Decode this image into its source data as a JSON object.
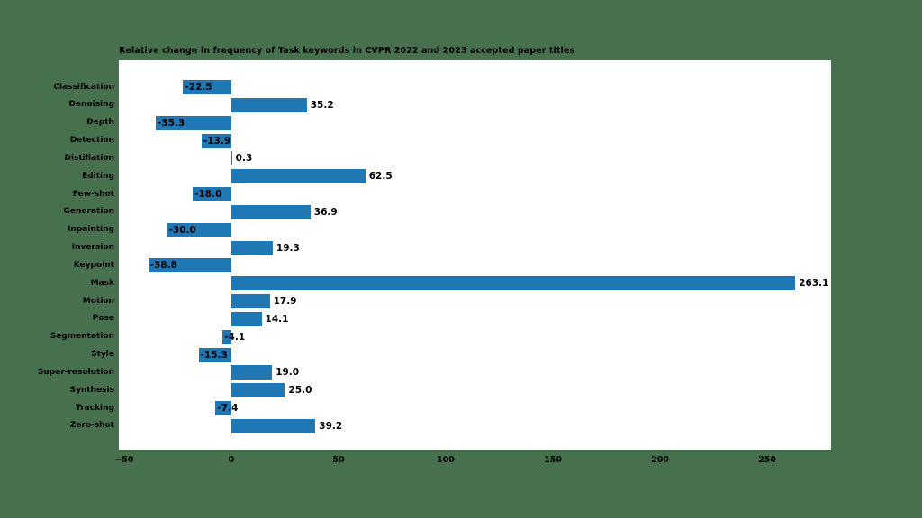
{
  "page": {
    "background_color": "#47704F",
    "plot_background_color": "#ffffff",
    "text_color": "#000000"
  },
  "chart_data": {
    "type": "bar",
    "orientation": "horizontal",
    "title": "Relative change in frequency of Task keywords in CVPR 2022 and 2023 accepted paper titles",
    "categories": [
      "Classification",
      "Denoising",
      "Depth",
      "Detection",
      "Distillation",
      "Editing",
      "Few-shot",
      "Generation",
      "Inpainting",
      "Inversion",
      "Keypoint",
      "Mask",
      "Motion",
      "Pose",
      "Segmentation",
      "Style",
      "Super-resolution",
      "Synthesis",
      "Tracking",
      "Zero-shot"
    ],
    "values": [
      -22.5,
      35.2,
      -35.3,
      -13.9,
      0.3,
      62.5,
      -18.0,
      36.9,
      -30.0,
      19.3,
      -38.8,
      263.1,
      17.9,
      14.1,
      -4.1,
      -15.3,
      19.0,
      25.0,
      -7.4,
      39.2
    ],
    "value_labels": [
      "-22.5",
      "35.2",
      "-35.3",
      "-13.9",
      "0.3",
      "62.5",
      "-18.0",
      "36.9",
      "-30.0",
      "19.3",
      "-38.8",
      "263.1",
      "17.9",
      "14.1",
      "-4.1",
      "-15.3",
      "19.0",
      "25.0",
      "-7.4",
      "39.2"
    ],
    "bar_color": "#1f77b4",
    "xlabel": "",
    "ylabel": "",
    "xlim": [
      -52.5,
      279.8
    ],
    "x_ticks": [
      -50,
      0,
      50,
      100,
      150,
      200,
      250
    ],
    "x_tick_labels": [
      "−50",
      "0",
      "50",
      "100",
      "150",
      "200",
      "250"
    ],
    "grid": false,
    "legend": "none"
  }
}
